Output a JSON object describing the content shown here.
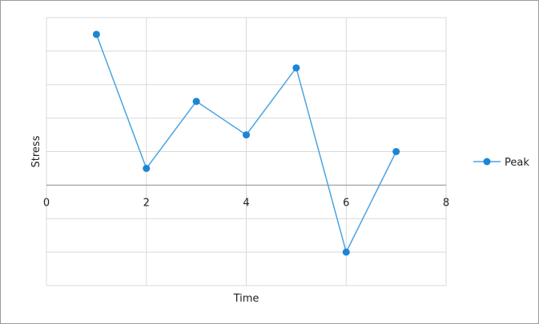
{
  "chart_data": {
    "type": "scatter",
    "xlabel": "Time",
    "ylabel": "Stress",
    "xlim": [
      0,
      8
    ],
    "ylim": [
      -3,
      5
    ],
    "x_ticks": [
      0,
      2,
      4,
      6,
      8
    ],
    "y_ticks_hidden": true,
    "grid": true,
    "legend_position": "right",
    "series": [
      {
        "name": "Peak",
        "color": "#1c86d3",
        "line_color": "#4aa3e3",
        "marker": "circle",
        "x": [
          1,
          2,
          3,
          4,
          5,
          6,
          7
        ],
        "y": [
          4.5,
          0.5,
          2.5,
          1.5,
          3.5,
          -2.0,
          1.0
        ]
      }
    ]
  }
}
